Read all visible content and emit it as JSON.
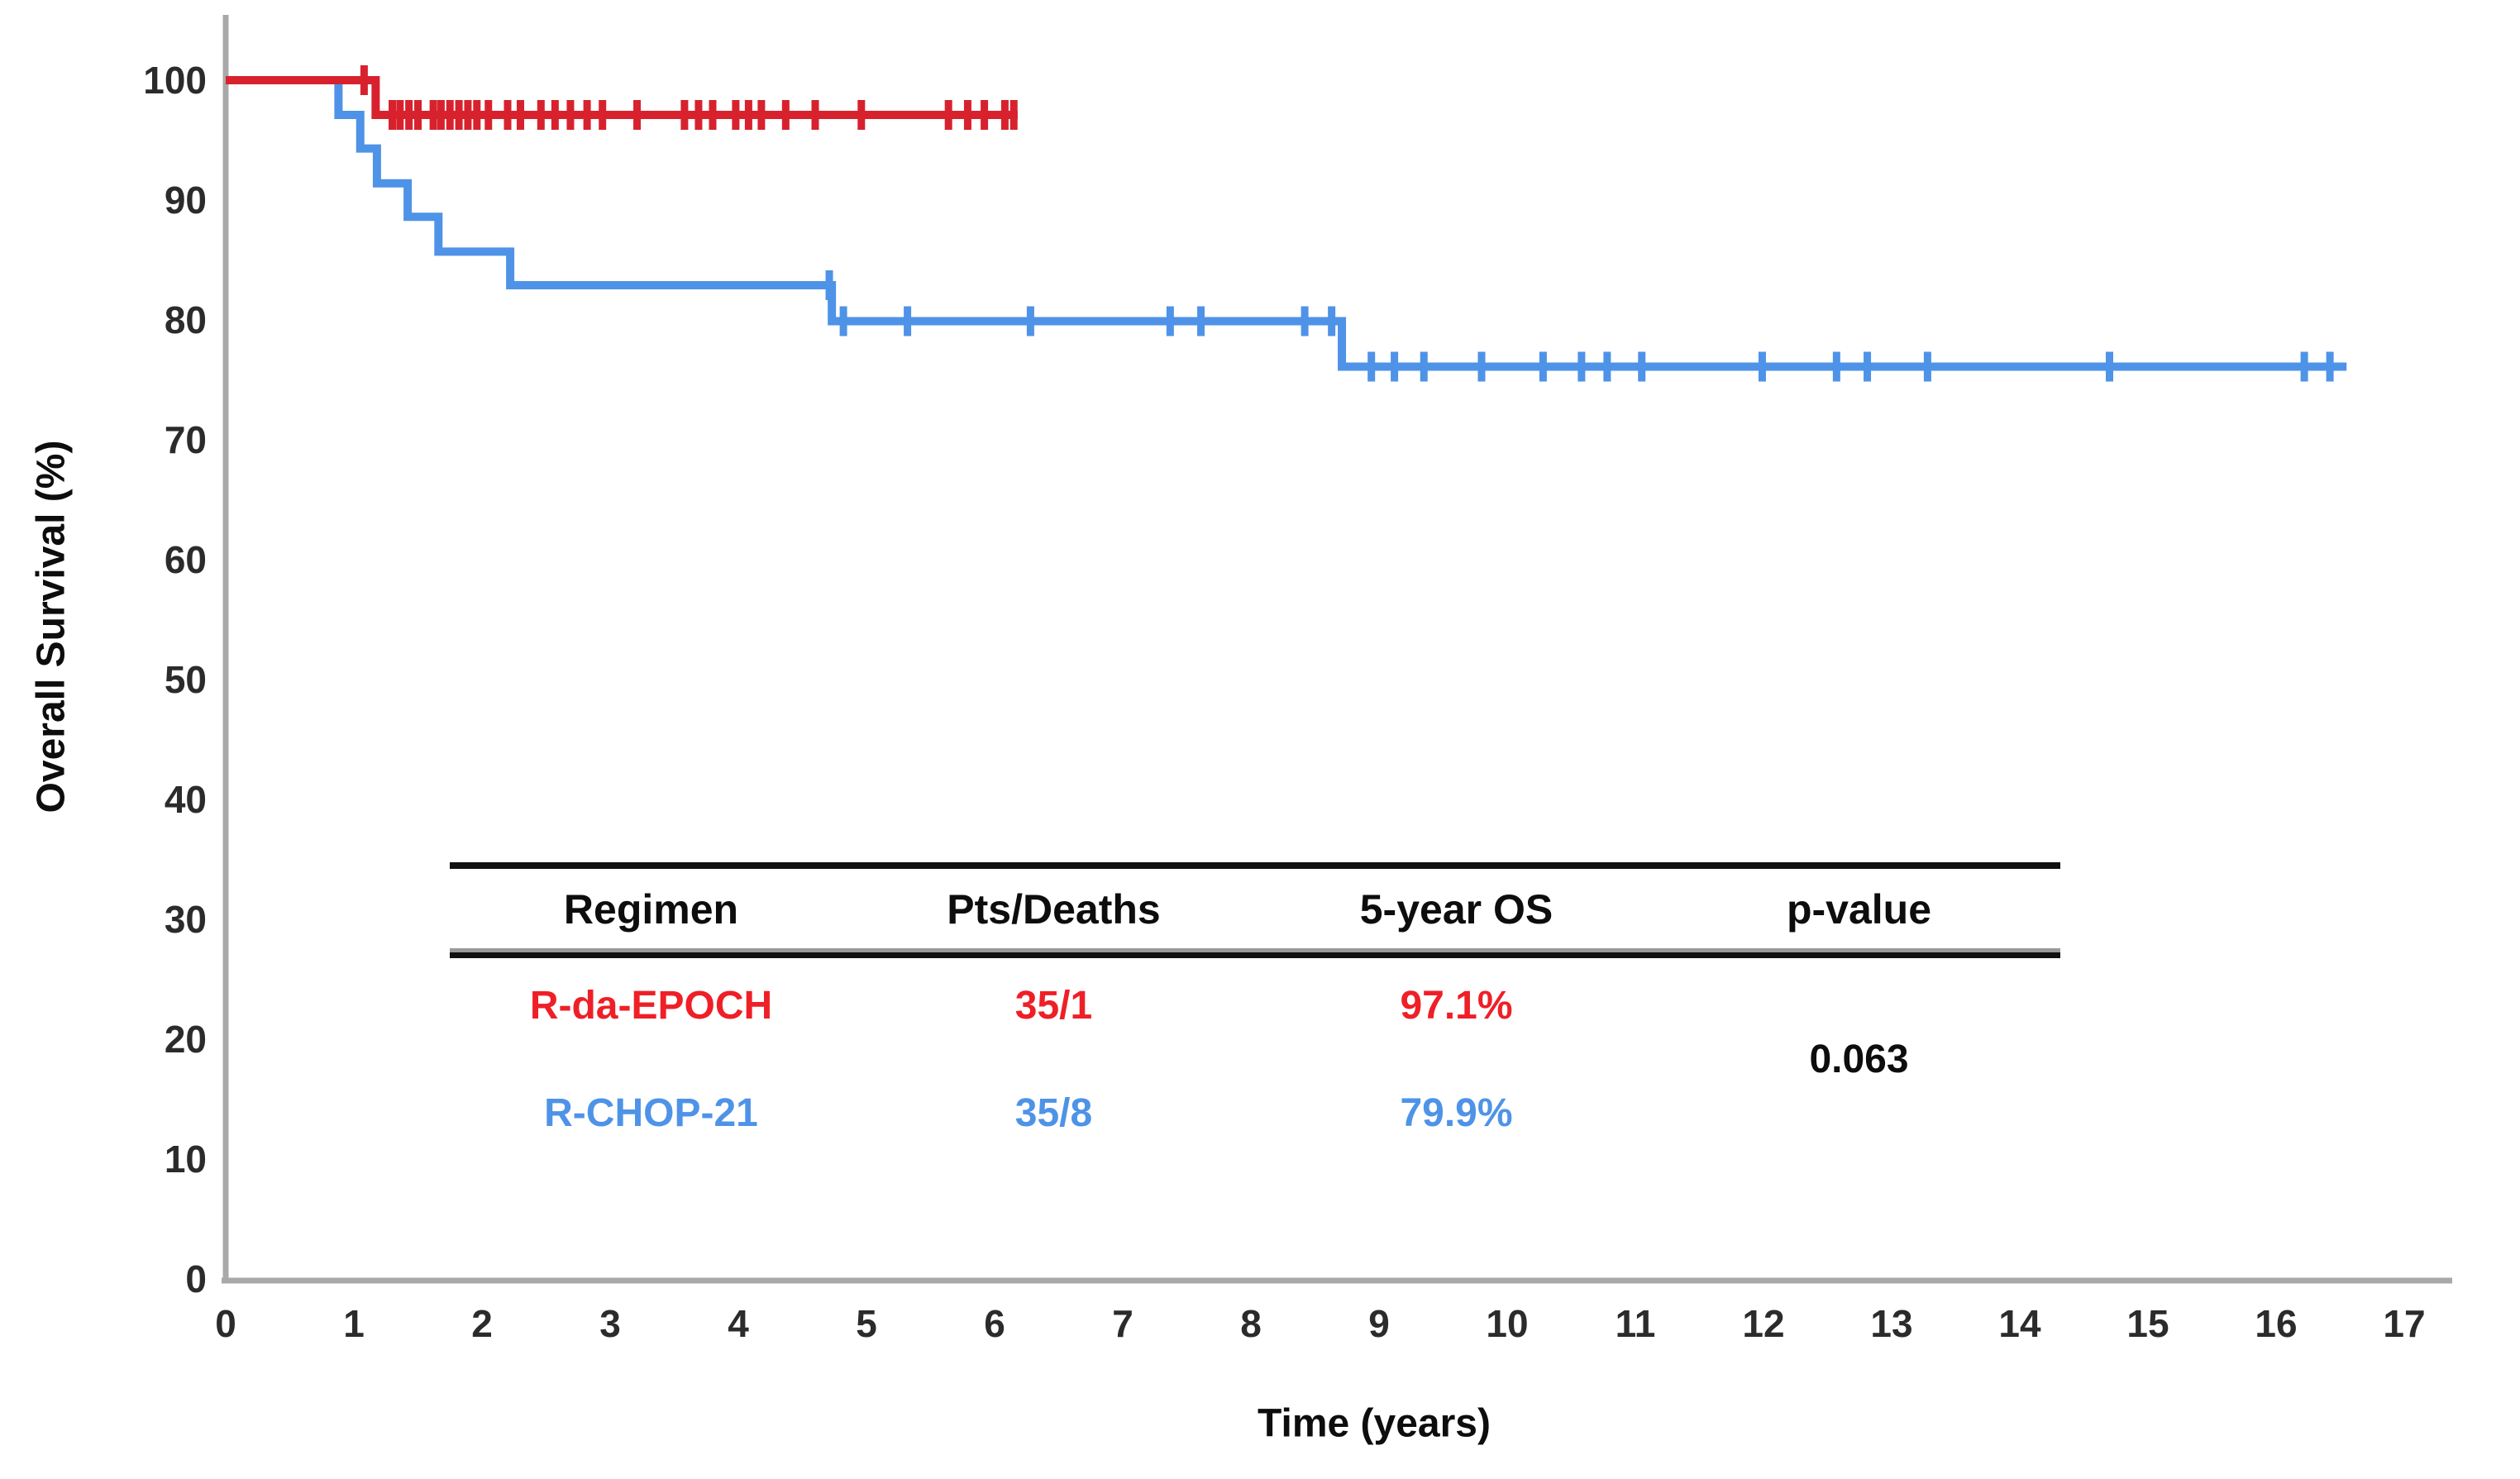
{
  "figure": {
    "background": "#ffffff",
    "axis_color": "#a9a9a9",
    "tick_text_color": "#2b2b2b"
  },
  "chart_data": {
    "type": "line",
    "subtype": "kaplan-meier-step",
    "title": "",
    "xlabel": "Time (years)",
    "ylabel": "Overall Survival (%)",
    "xlim": [
      0,
      17
    ],
    "ylim": [
      0,
      100
    ],
    "xticks": [
      0,
      1,
      2,
      3,
      4,
      5,
      6,
      7,
      8,
      9,
      10,
      11,
      12,
      13,
      14,
      15,
      16,
      17
    ],
    "yticks": [
      0,
      10,
      20,
      30,
      40,
      50,
      60,
      70,
      80,
      90,
      100
    ],
    "grid": false,
    "legend_position": "inset-table",
    "series": [
      {
        "name": "R-CHOP-21",
        "color": "#4e93e7",
        "steps": [
          [
            0,
            100
          ],
          [
            0.88,
            100
          ],
          [
            0.88,
            97.1
          ],
          [
            1.05,
            97.1
          ],
          [
            1.05,
            94.3
          ],
          [
            1.18,
            94.3
          ],
          [
            1.18,
            91.4
          ],
          [
            1.42,
            91.4
          ],
          [
            1.42,
            88.6
          ],
          [
            1.66,
            88.6
          ],
          [
            1.66,
            85.7
          ],
          [
            2.22,
            85.7
          ],
          [
            2.22,
            82.9
          ],
          [
            4.73,
            82.9
          ],
          [
            4.73,
            79.9
          ],
          [
            8.71,
            79.9
          ],
          [
            8.71,
            76.1
          ],
          [
            16.55,
            76.1
          ]
        ],
        "censors": [
          [
            4.71,
            82.9
          ],
          [
            4.82,
            79.9
          ],
          [
            5.32,
            79.9
          ],
          [
            6.28,
            79.9
          ],
          [
            7.37,
            79.9
          ],
          [
            7.61,
            79.9
          ],
          [
            8.42,
            79.9
          ],
          [
            8.63,
            79.9
          ],
          [
            8.94,
            76.1
          ],
          [
            9.12,
            76.1
          ],
          [
            9.35,
            76.1
          ],
          [
            9.8,
            76.1
          ],
          [
            10.28,
            76.1
          ],
          [
            10.58,
            76.1
          ],
          [
            10.78,
            76.1
          ],
          [
            11.05,
            76.1
          ],
          [
            11.99,
            76.1
          ],
          [
            12.57,
            76.1
          ],
          [
            12.81,
            76.1
          ],
          [
            13.28,
            76.1
          ],
          [
            14.7,
            76.1
          ],
          [
            16.22,
            76.1
          ],
          [
            16.42,
            76.1
          ]
        ]
      },
      {
        "name": "R-da-EPOCH",
        "color": "#d7222e",
        "steps": [
          [
            0,
            100
          ],
          [
            1.17,
            100
          ],
          [
            1.17,
            97.1
          ],
          [
            6.18,
            97.1
          ]
        ],
        "censors": [
          [
            1.08,
            100
          ],
          [
            1.3,
            97.1
          ],
          [
            1.36,
            97.1
          ],
          [
            1.43,
            97.1
          ],
          [
            1.5,
            97.1
          ],
          [
            1.62,
            97.1
          ],
          [
            1.68,
            97.1
          ],
          [
            1.75,
            97.1
          ],
          [
            1.82,
            97.1
          ],
          [
            1.89,
            97.1
          ],
          [
            1.96,
            97.1
          ],
          [
            2.05,
            97.1
          ],
          [
            2.2,
            97.1
          ],
          [
            2.3,
            97.1
          ],
          [
            2.46,
            97.1
          ],
          [
            2.57,
            97.1
          ],
          [
            2.69,
            97.1
          ],
          [
            2.82,
            97.1
          ],
          [
            2.94,
            97.1
          ],
          [
            3.21,
            97.1
          ],
          [
            3.58,
            97.1
          ],
          [
            3.69,
            97.1
          ],
          [
            3.8,
            97.1
          ],
          [
            3.98,
            97.1
          ],
          [
            4.08,
            97.1
          ],
          [
            4.18,
            97.1
          ],
          [
            4.37,
            97.1
          ],
          [
            4.6,
            97.1
          ],
          [
            4.96,
            97.1
          ],
          [
            5.64,
            97.1
          ],
          [
            5.79,
            97.1
          ],
          [
            5.92,
            97.1
          ],
          [
            6.08,
            97.1
          ],
          [
            6.15,
            97.1
          ]
        ]
      }
    ]
  },
  "inset_table": {
    "headers": {
      "regimen": "Regimen",
      "pts_deaths": "Pts/Deaths",
      "five_year_os": "5-year OS",
      "p_value": "p-value"
    },
    "rows": [
      {
        "regimen": "R-da-EPOCH",
        "pts_deaths": "35/1",
        "five_year_os": "97.1%",
        "color": "#ee1f27"
      },
      {
        "regimen": "R-CHOP-21",
        "pts_deaths": "35/8",
        "five_year_os": "79.9%",
        "color": "#4e93e7"
      }
    ],
    "p_value": "0.063"
  }
}
